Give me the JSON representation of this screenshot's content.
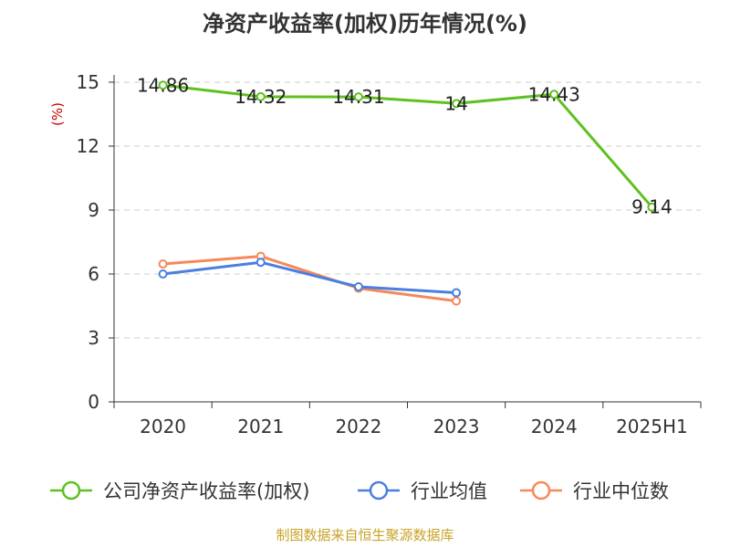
{
  "chart_data": {
    "type": "line",
    "title": "净资产收益率(加权)历年情况(%)",
    "ylabel": "(%)",
    "categories": [
      "2020",
      "2021",
      "2022",
      "2023",
      "2024",
      "2025H1"
    ],
    "yticks": [
      "0",
      "3",
      "6",
      "9",
      "12",
      "15"
    ],
    "ylim": [
      0,
      15
    ],
    "grid": true,
    "legend_position": "bottom",
    "series": [
      {
        "name": "公司净资产收益率(加权)",
        "color": "#5ec11f",
        "values": [
          14.86,
          14.32,
          14.31,
          14,
          14.43,
          9.14
        ],
        "labels": [
          "14.86",
          "14.32",
          "14.31",
          "14",
          "14.43",
          "9.14"
        ]
      },
      {
        "name": "行业均值",
        "color": "#4a7fe0",
        "values": [
          6.0,
          6.55,
          5.4,
          5.12,
          null,
          null
        ],
        "labels": []
      },
      {
        "name": "行业中位数",
        "color": "#f5895a",
        "values": [
          6.47,
          6.83,
          5.33,
          4.73,
          null,
          null
        ],
        "labels": []
      }
    ]
  },
  "source": "制图数据来自恒生聚源数据库"
}
